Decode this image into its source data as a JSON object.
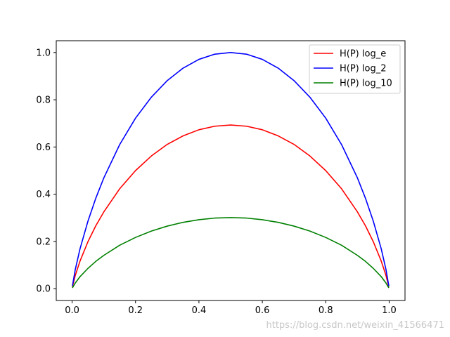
{
  "chart_data": {
    "type": "line",
    "title": "",
    "xlabel": "",
    "ylabel": "",
    "xlim": [
      -0.05,
      1.05
    ],
    "ylim": [
      -0.05,
      1.05
    ],
    "xticks": [
      0.0,
      0.2,
      0.4,
      0.6,
      0.8,
      1.0
    ],
    "xtick_labels": [
      "0.0",
      "0.2",
      "0.4",
      "0.6",
      "0.8",
      "1.0"
    ],
    "yticks": [
      0.0,
      0.2,
      0.4,
      0.6,
      0.8,
      1.0
    ],
    "ytick_labels": [
      "0.0",
      "0.2",
      "0.4",
      "0.6",
      "0.8",
      "1.0"
    ],
    "grid": false,
    "legend_position": "top-right",
    "x": [
      0.001,
      0.01,
      0.025,
      0.05,
      0.075,
      0.1,
      0.15,
      0.2,
      0.25,
      0.3,
      0.35,
      0.4,
      0.45,
      0.5,
      0.55,
      0.6,
      0.65,
      0.7,
      0.75,
      0.8,
      0.85,
      0.9,
      0.925,
      0.95,
      0.975,
      0.99,
      0.999
    ],
    "series": [
      {
        "name": "H(P) log_e",
        "color": "#ff0000",
        "values": [
          0.0079,
          0.056,
          0.117,
          0.199,
          0.267,
          0.325,
          0.423,
          0.5,
          0.562,
          0.611,
          0.647,
          0.673,
          0.688,
          0.693,
          0.688,
          0.673,
          0.647,
          0.611,
          0.562,
          0.5,
          0.423,
          0.325,
          0.267,
          0.199,
          0.117,
          0.056,
          0.0079
        ]
      },
      {
        "name": "H(P) log_2",
        "color": "#0000ff",
        "values": [
          0.0114,
          0.081,
          0.169,
          0.286,
          0.384,
          0.469,
          0.61,
          0.722,
          0.811,
          0.881,
          0.934,
          0.971,
          0.993,
          1.0,
          0.993,
          0.971,
          0.934,
          0.881,
          0.811,
          0.722,
          0.61,
          0.469,
          0.384,
          0.286,
          0.169,
          0.081,
          0.0114
        ]
      },
      {
        "name": "H(P) log_10",
        "color": "#008000",
        "values": [
          0.0034,
          0.024,
          0.051,
          0.086,
          0.116,
          0.141,
          0.184,
          0.217,
          0.244,
          0.265,
          0.281,
          0.292,
          0.299,
          0.301,
          0.299,
          0.292,
          0.281,
          0.265,
          0.244,
          0.217,
          0.184,
          0.141,
          0.116,
          0.086,
          0.051,
          0.024,
          0.0034
        ]
      }
    ]
  },
  "watermark": "https://blog.csdn.net/weixin_41566471"
}
